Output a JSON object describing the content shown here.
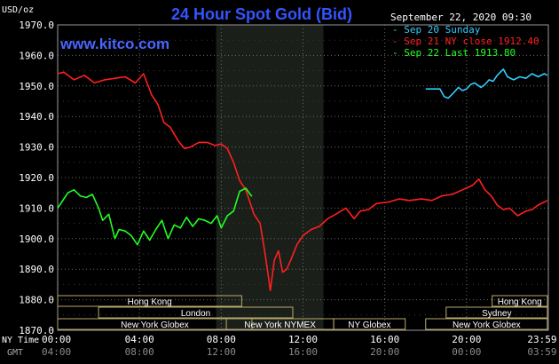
{
  "title": "24 Hour Spot Gold (Bid)",
  "website": "www.kitco.com",
  "timestamp": "September 22, 2020 09:30",
  "unit": "USD/oz",
  "tz_labels": {
    "ny": "NY Time",
    "gmt": "GMT"
  },
  "colors": {
    "sep20": "#33ccff",
    "sep21": "#ff2020",
    "sep22": "#22ff22",
    "title": "#3355ff",
    "highlight": "#1a1f1a"
  },
  "sessions": [
    {
      "name": "Hong Kong",
      "row": 0,
      "start": 0.0,
      "end": 9.0
    },
    {
      "name": "London",
      "row": 1,
      "start": 2.0,
      "end": 11.5
    },
    {
      "name": "New York Globex",
      "row": 2,
      "start": 0.0,
      "end": 9.5
    },
    {
      "name": "New York NYMEX",
      "row": 2,
      "start": 8.25,
      "end": 13.5
    },
    {
      "name": "NY Globex",
      "row": 2,
      "start": 13.5,
      "end": 17.0
    },
    {
      "name": "Hong Kong",
      "row": 0,
      "start": 21.25,
      "end": 23.95
    },
    {
      "name": "Sydney",
      "row": 1,
      "start": 19.0,
      "end": 23.95
    },
    {
      "name": "New York Globex",
      "row": 2,
      "start": 18.0,
      "end": 23.95
    }
  ],
  "chart_data": {
    "type": "line",
    "ylabel": "USD/oz",
    "ylim": [
      1870,
      1970
    ],
    "xlim": [
      0,
      24
    ],
    "y_ticks": [
      "1870.0",
      "1880.0",
      "1890.0",
      "1900.0",
      "1910.0",
      "1920.0",
      "1930.0",
      "1940.0",
      "1950.0",
      "1960.0",
      "1970.0"
    ],
    "x_ticks_ny": [
      "00:00",
      "04:00",
      "08:00",
      "12:00",
      "16:00",
      "20:00",
      "23:59"
    ],
    "x_ticks_gmt": [
      "04:00",
      "08:00",
      "12:00",
      "16:00",
      "20:00",
      "00:00",
      "03:59"
    ],
    "highlight_range": [
      7.75,
      13.0
    ],
    "series": [
      {
        "name": "Sep 20 Sunday",
        "legend": "Sep 20 Sunday",
        "color": "#33ccff",
        "x": [
          18.0,
          18.7,
          18.9,
          19.1,
          19.4,
          19.6,
          19.8,
          20.0,
          20.2,
          20.4,
          20.7,
          20.9,
          21.1,
          21.3,
          21.5,
          21.8,
          22.0,
          22.3,
          22.6,
          22.9,
          23.2,
          23.5,
          23.8,
          23.95
        ],
        "y": [
          1949.0,
          1949.0,
          1946.5,
          1946.0,
          1948.0,
          1949.5,
          1948.5,
          1949.0,
          1950.5,
          1951.0,
          1949.5,
          1950.5,
          1952.0,
          1951.5,
          1953.5,
          1955.5,
          1953.0,
          1952.0,
          1953.0,
          1952.5,
          1954.0,
          1953.0,
          1954.0,
          1953.5
        ]
      },
      {
        "name": "Sep 21 NY close 1912.40",
        "legend": "Sep 21 NY close 1912.40",
        "color": "#ff2020",
        "x": [
          0.0,
          0.3,
          0.8,
          1.3,
          1.8,
          2.3,
          2.8,
          3.3,
          3.8,
          4.2,
          4.6,
          4.9,
          5.2,
          5.5,
          5.9,
          6.2,
          6.5,
          6.9,
          7.3,
          7.7,
          8.0,
          8.3,
          8.6,
          8.9,
          9.2,
          9.6,
          9.9,
          10.1,
          10.3,
          10.4,
          10.6,
          10.8,
          11.0,
          11.2,
          11.4,
          11.7,
          12.0,
          12.4,
          12.8,
          13.2,
          13.6,
          14.1,
          14.5,
          14.8,
          15.2,
          15.6,
          16.2,
          16.7,
          17.2,
          17.8,
          18.3,
          18.8,
          19.3,
          19.8,
          20.3,
          20.6,
          20.9,
          21.2,
          21.5,
          21.8,
          22.1,
          22.5,
          22.9,
          23.2,
          23.5,
          23.95
        ],
        "y": [
          1954.0,
          1954.5,
          1952.0,
          1953.5,
          1951.0,
          1952.0,
          1952.5,
          1953.0,
          1951.0,
          1954.0,
          1947.0,
          1944.0,
          1938.0,
          1936.5,
          1932.0,
          1929.5,
          1930.0,
          1931.5,
          1931.5,
          1930.5,
          1931.0,
          1929.5,
          1925.0,
          1919.0,
          1916.0,
          1908.0,
          1905.0,
          1897.0,
          1888.0,
          1883.0,
          1893.0,
          1896.0,
          1889.0,
          1890.0,
          1893.0,
          1898.0,
          1901.0,
          1903.0,
          1904.0,
          1906.5,
          1908.0,
          1910.0,
          1906.5,
          1909.0,
          1909.5,
          1911.5,
          1912.0,
          1913.0,
          1912.5,
          1913.0,
          1912.5,
          1914.0,
          1914.5,
          1916.0,
          1917.5,
          1919.5,
          1916.0,
          1914.0,
          1911.0,
          1909.5,
          1910.0,
          1907.5,
          1909.0,
          1909.5,
          1911.0,
          1912.5
        ]
      },
      {
        "name": "Sep 22 Last 1913.80",
        "legend": "Sep 22 Last 1913.80",
        "color": "#22ff22",
        "x": [
          0.0,
          0.2,
          0.5,
          0.8,
          1.1,
          1.4,
          1.7,
          2.0,
          2.2,
          2.5,
          2.8,
          3.0,
          3.3,
          3.6,
          3.9,
          4.2,
          4.5,
          4.8,
          5.1,
          5.4,
          5.7,
          6.0,
          6.3,
          6.6,
          6.9,
          7.2,
          7.5,
          7.8,
          8.0,
          8.3,
          8.6,
          8.9,
          9.2,
          9.5
        ],
        "y": [
          1910.0,
          1912.0,
          1915.0,
          1916.0,
          1914.0,
          1913.5,
          1914.5,
          1910.0,
          1906.0,
          1908.0,
          1900.0,
          1903.0,
          1902.5,
          1901.0,
          1898.0,
          1902.5,
          1899.5,
          1903.0,
          1906.0,
          1900.0,
          1904.5,
          1903.5,
          1907.0,
          1904.0,
          1906.5,
          1906.0,
          1905.0,
          1907.5,
          1903.5,
          1907.5,
          1909.0,
          1915.5,
          1916.5,
          1913.8
        ]
      }
    ]
  }
}
